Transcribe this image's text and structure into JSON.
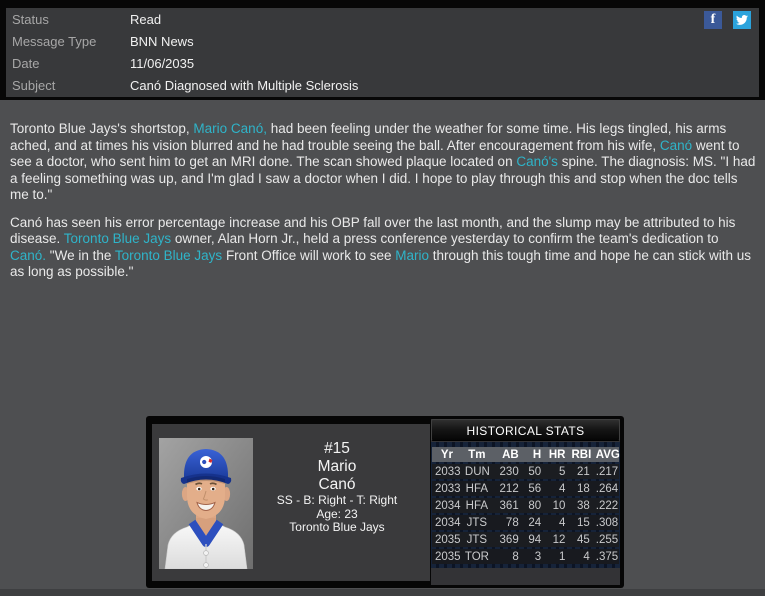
{
  "header": {
    "rows": [
      {
        "label": "Status",
        "value": "Read"
      },
      {
        "label": "Message Type",
        "value": "BNN News"
      },
      {
        "label": "Date",
        "value": "11/06/2035"
      },
      {
        "label": "Subject",
        "value": "Canó Diagnosed with Multiple Sclerosis"
      }
    ],
    "icons": {
      "facebook_glyph": "f",
      "twitter_icon": "twitter-bird"
    }
  },
  "article": {
    "paragraphs": [
      {
        "segments": [
          {
            "t": "Toronto Blue Jays's shortstop, "
          },
          {
            "t": "Mario Canó,",
            "link": true
          },
          {
            "t": " had been feeling under the weather for some time. His legs tingled, his arms ached, and at times his vision blurred and he had trouble seeing the ball. After encouragement from his wife, "
          },
          {
            "t": "Canó",
            "link": true
          },
          {
            "t": " went to see a doctor, who sent him to get an MRI done. The scan showed plaque located on "
          },
          {
            "t": "Canó's",
            "link": true
          },
          {
            "t": " spine. The diagnosis: MS. \"I had a feeling something was up, and I'm glad I saw a doctor when I did. I hope to play through this and stop when the doc tells me to.\""
          }
        ]
      },
      {
        "segments": [
          {
            "t": "Canó has seen his error percentage increase and his OBP fall over the last month, and the slump may be attributed to his disease. "
          },
          {
            "t": "Toronto Blue Jays",
            "link": true
          },
          {
            "t": " owner, Alan Horn Jr., held a press conference yesterday to confirm the team's dedication to "
          },
          {
            "t": "Canó.",
            "link": true
          },
          {
            "t": " \"We in the "
          },
          {
            "t": "Toronto Blue Jays",
            "link": true
          },
          {
            "t": " Front Office will work to see "
          },
          {
            "t": "Mario",
            "link": true
          },
          {
            "t": " through this tough time and hope he can stick with us as long as possible.\""
          }
        ]
      }
    ]
  },
  "player_card": {
    "number": "#15",
    "first_name": "Mario",
    "last_name": "Canó",
    "position_line": "SS - B: Right - T: Right",
    "age_line": "Age: 23",
    "team": "Toronto Blue Jays"
  },
  "stats": {
    "title": "HISTORICAL STATS",
    "columns": [
      "Yr",
      "Tm",
      "AB",
      "H",
      "HR",
      "RBI",
      "AVG"
    ],
    "rows": [
      [
        "2033",
        "DUN",
        "230",
        "50",
        "5",
        "21",
        ".217"
      ],
      [
        "2033",
        "HFA",
        "212",
        "56",
        "4",
        "18",
        ".264"
      ],
      [
        "2034",
        "HFA",
        "361",
        "80",
        "10",
        "38",
        ".222"
      ],
      [
        "2034",
        "JTS",
        "78",
        "24",
        "4",
        "15",
        ".308"
      ],
      [
        "2035",
        "JTS",
        "369",
        "94",
        "12",
        "45",
        ".255"
      ],
      [
        "2035",
        "TOR",
        "8",
        "3",
        "1",
        "4",
        ".375"
      ]
    ]
  },
  "colors": {
    "link": "#2fb4c9",
    "facebook": "#3b5998",
    "twitter": "#2ba3dc",
    "cap_blue": "#2d4fbe",
    "pinstripe_navy": "#162339"
  }
}
